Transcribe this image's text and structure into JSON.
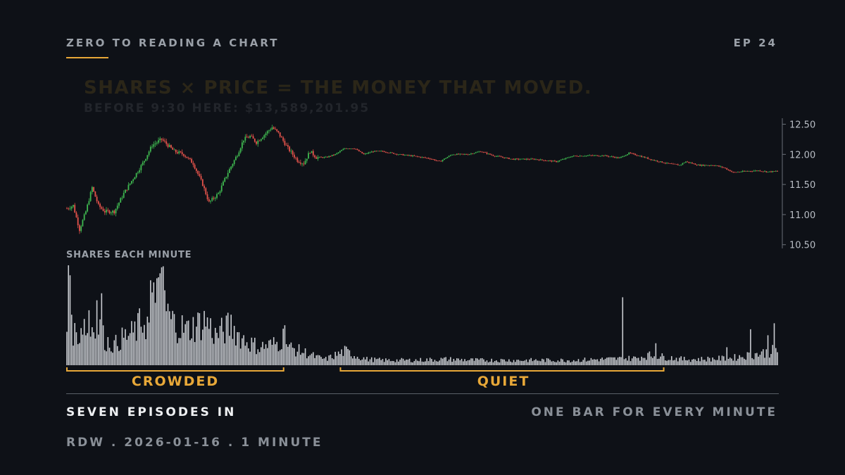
{
  "header": {
    "series_title": "ZERO TO READING A CHART",
    "episode": "EP 24"
  },
  "callout": {
    "headline": "SHARES × PRICE = THE MONEY THAT MOVED.",
    "subline": "BEFORE 9:30 HERE: $13,589,201.95"
  },
  "volume_label": "SHARES EACH MINUTE",
  "brackets": {
    "crowded": "CROWDED",
    "quiet": "QUIET"
  },
  "footer": {
    "left": "SEVEN EPISODES IN",
    "right": "ONE BAR FOR EVERY MINUTE",
    "meta": "RDW . 2026-01-16 . 1 MINUTE"
  },
  "colors": {
    "background": "#0e1117",
    "up": "#3fb950",
    "down": "#e5534b",
    "accent": "#e8a838",
    "volume": "#c9ccd1"
  },
  "chart_data": {
    "type": "candlestick",
    "interval": "1 minute",
    "ylim": [
      10.45,
      12.6
    ],
    "y_ticks": [
      "12.50",
      "12.00",
      "11.50",
      "11.00",
      "10.50"
    ],
    "y_tick_values": [
      12.5,
      12.0,
      11.5,
      11.0,
      10.5
    ],
    "price_path": [
      [
        0,
        11.1
      ],
      [
        4,
        11.15
      ],
      [
        8,
        10.75
      ],
      [
        12,
        11.05
      ],
      [
        16,
        11.45
      ],
      [
        20,
        11.15
      ],
      [
        24,
        11.05
      ],
      [
        30,
        11.05
      ],
      [
        36,
        11.35
      ],
      [
        42,
        11.6
      ],
      [
        48,
        11.85
      ],
      [
        54,
        12.15
      ],
      [
        60,
        12.25
      ],
      [
        64,
        12.15
      ],
      [
        68,
        12.05
      ],
      [
        74,
        12.0
      ],
      [
        80,
        11.85
      ],
      [
        86,
        11.5
      ],
      [
        90,
        11.2
      ],
      [
        96,
        11.35
      ],
      [
        102,
        11.7
      ],
      [
        108,
        12.0
      ],
      [
        112,
        12.25
      ],
      [
        116,
        12.3
      ],
      [
        120,
        12.2
      ],
      [
        126,
        12.35
      ],
      [
        130,
        12.45
      ],
      [
        134,
        12.35
      ],
      [
        140,
        12.1
      ],
      [
        146,
        11.9
      ],
      [
        150,
        11.85
      ],
      [
        154,
        12.05
      ],
      [
        158,
        11.95
      ],
      [
        164,
        11.95
      ],
      [
        170,
        12.0
      ],
      [
        176,
        12.1
      ],
      [
        182,
        12.1
      ],
      [
        188,
        12.0
      ],
      [
        194,
        12.05
      ],
      [
        200,
        12.05
      ],
      [
        210,
        12.0
      ],
      [
        220,
        11.97
      ],
      [
        230,
        11.93
      ],
      [
        236,
        11.88
      ],
      [
        244,
        12.0
      ],
      [
        254,
        12.0
      ],
      [
        262,
        12.05
      ],
      [
        270,
        11.98
      ],
      [
        282,
        11.92
      ],
      [
        296,
        11.92
      ],
      [
        310,
        11.88
      ],
      [
        320,
        11.97
      ],
      [
        330,
        11.98
      ],
      [
        340,
        11.98
      ],
      [
        350,
        11.94
      ],
      [
        356,
        12.02
      ],
      [
        362,
        11.98
      ],
      [
        372,
        11.9
      ],
      [
        380,
        11.85
      ],
      [
        388,
        11.82
      ],
      [
        392,
        11.88
      ],
      [
        400,
        11.82
      ],
      [
        410,
        11.82
      ],
      [
        416,
        11.78
      ],
      [
        422,
        11.7
      ],
      [
        430,
        11.72
      ],
      [
        438,
        11.73
      ],
      [
        444,
        11.71
      ],
      [
        450,
        11.72
      ]
    ],
    "volume_profile": [
      [
        0,
        0.35
      ],
      [
        1,
        0.98
      ],
      [
        3,
        0.35
      ],
      [
        8,
        0.3
      ],
      [
        10,
        0.45
      ],
      [
        14,
        0.3
      ],
      [
        18,
        0.48
      ],
      [
        24,
        0.25
      ],
      [
        30,
        0.2
      ],
      [
        36,
        0.28
      ],
      [
        40,
        0.3
      ],
      [
        44,
        0.35
      ],
      [
        48,
        0.45
      ],
      [
        52,
        0.4
      ],
      [
        55,
        0.62
      ],
      [
        58,
        0.8
      ],
      [
        62,
        0.55
      ],
      [
        66,
        0.45
      ],
      [
        70,
        0.4
      ],
      [
        76,
        0.35
      ],
      [
        82,
        0.4
      ],
      [
        88,
        0.45
      ],
      [
        94,
        0.3
      ],
      [
        100,
        0.35
      ],
      [
        104,
        0.4
      ],
      [
        110,
        0.28
      ],
      [
        116,
        0.22
      ],
      [
        122,
        0.18
      ],
      [
        128,
        0.2
      ],
      [
        134,
        0.22
      ],
      [
        138,
        0.3
      ],
      [
        140,
        0.18
      ],
      [
        146,
        0.15
      ],
      [
        152,
        0.12
      ],
      [
        158,
        0.08
      ],
      [
        164,
        0.06
      ],
      [
        170,
        0.1
      ],
      [
        176,
        0.14
      ],
      [
        182,
        0.1
      ],
      [
        190,
        0.06
      ],
      [
        200,
        0.05
      ],
      [
        220,
        0.05
      ],
      [
        240,
        0.06
      ],
      [
        260,
        0.05
      ],
      [
        280,
        0.05
      ],
      [
        300,
        0.05
      ],
      [
        320,
        0.05
      ],
      [
        340,
        0.06
      ],
      [
        360,
        0.07
      ],
      [
        368,
        0.1
      ],
      [
        380,
        0.08
      ],
      [
        390,
        0.06
      ],
      [
        400,
        0.06
      ],
      [
        420,
        0.07
      ],
      [
        440,
        0.12
      ],
      [
        450,
        0.15
      ]
    ],
    "volume_spikes": [
      [
        1,
        1.0
      ],
      [
        2,
        0.9
      ],
      [
        53,
        0.85
      ],
      [
        57,
        0.87
      ],
      [
        58,
        0.88
      ],
      [
        59,
        0.92
      ],
      [
        60,
        0.98
      ],
      [
        61,
        0.99
      ],
      [
        62,
        0.75
      ],
      [
        14,
        0.55
      ],
      [
        19,
        0.65
      ],
      [
        22,
        0.72
      ],
      [
        138,
        0.4
      ],
      [
        352,
        0.68
      ],
      [
        373,
        0.22
      ],
      [
        433,
        0.36
      ],
      [
        448,
        0.42
      ],
      [
        418,
        0.18
      ],
      [
        444,
        0.3
      ]
    ],
    "sessions": [
      {
        "label": "CROWDED",
        "start_fraction": 0.0,
        "end_fraction": 0.305
      },
      {
        "label": "QUIET",
        "start_fraction": 0.385,
        "end_fraction": 0.84
      }
    ]
  }
}
